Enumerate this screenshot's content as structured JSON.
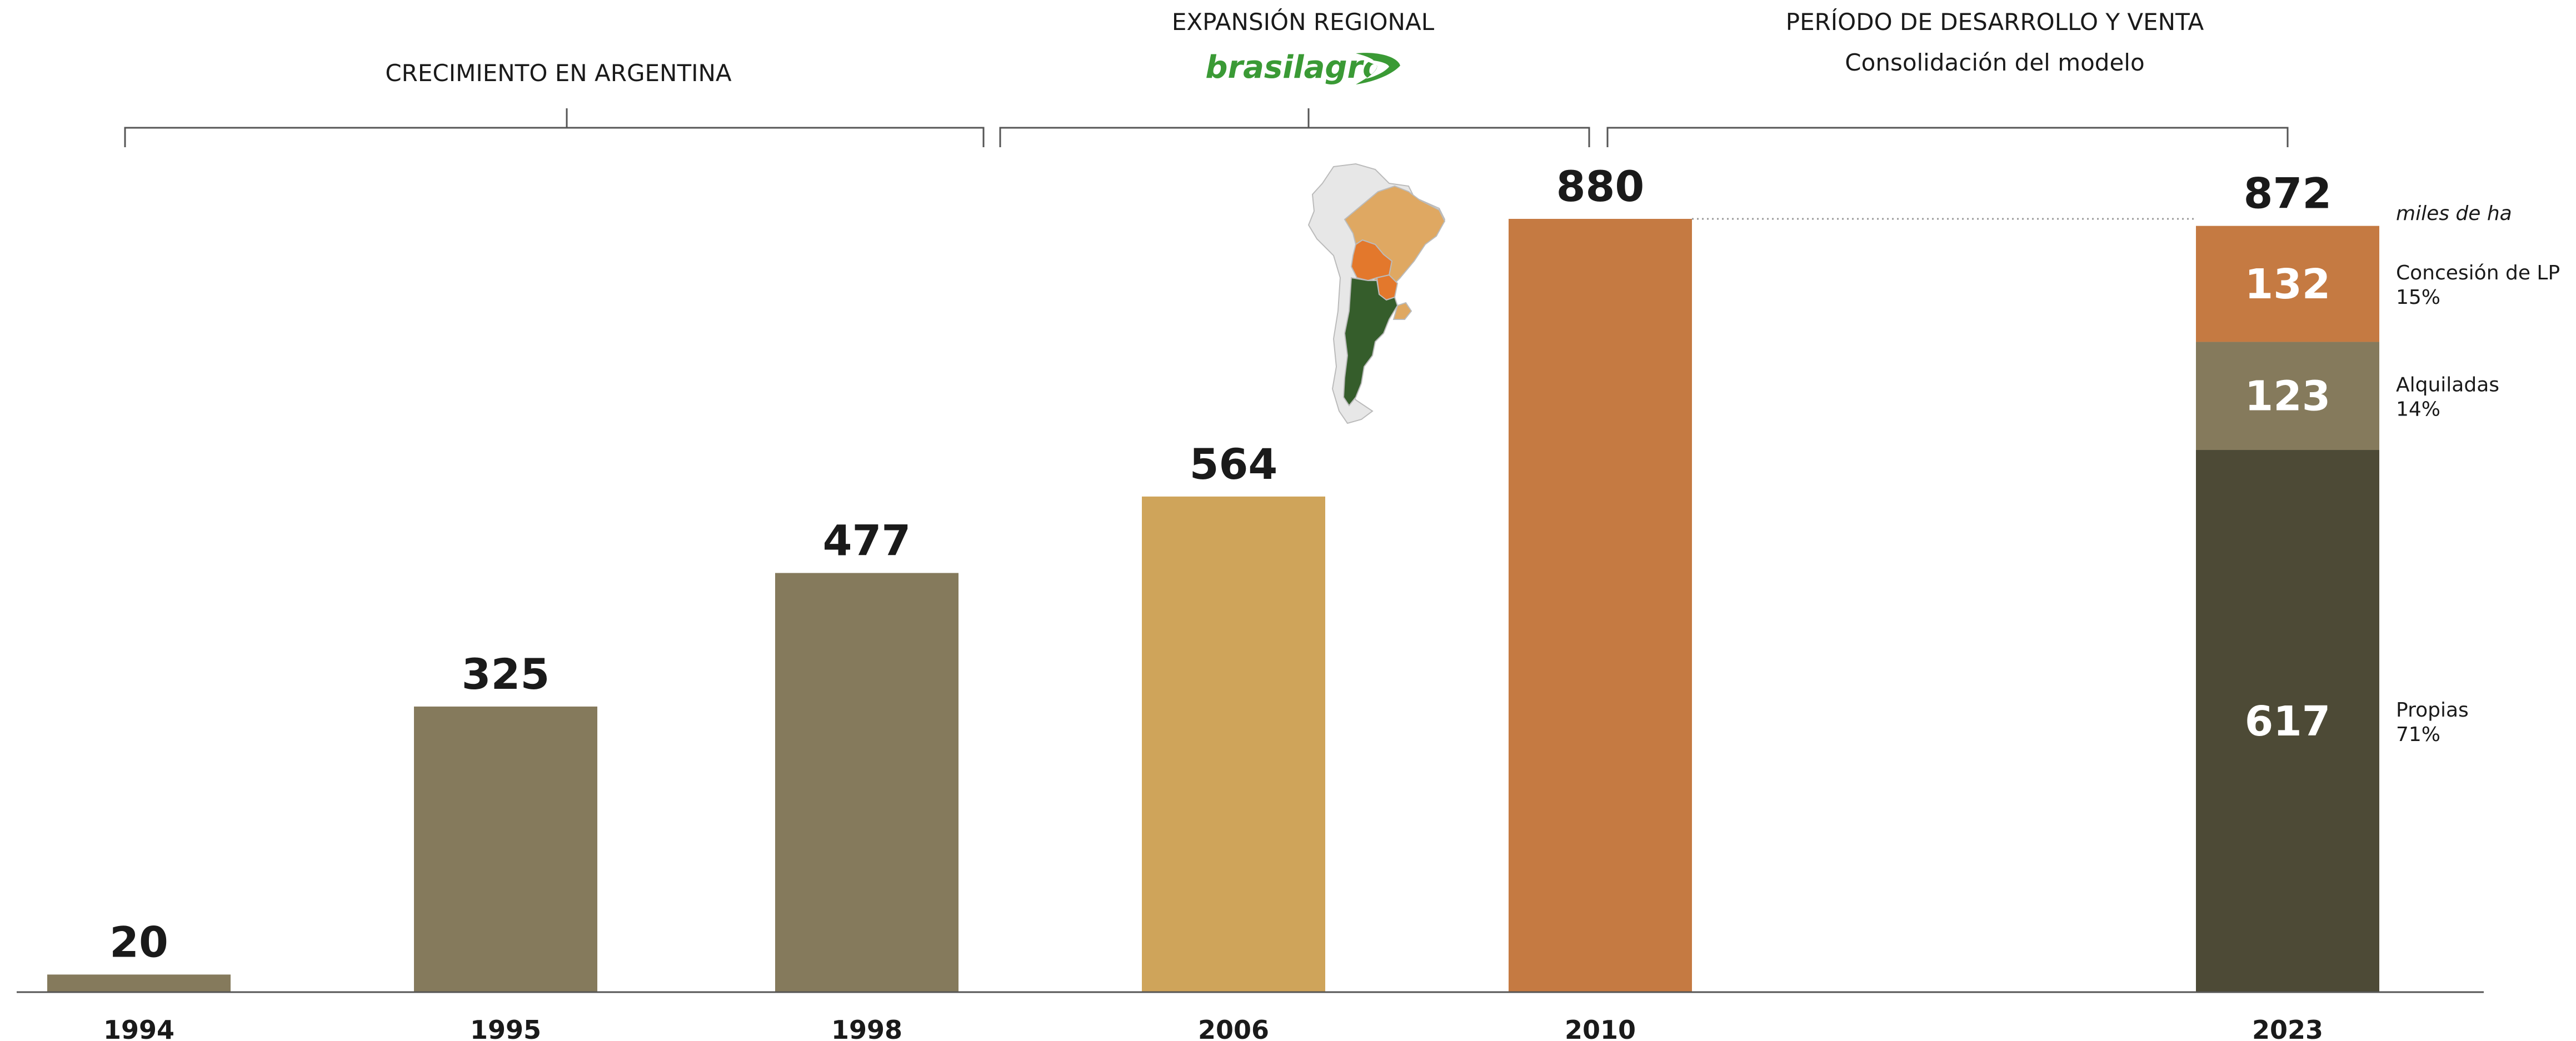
{
  "header": {
    "periods": [
      {
        "title": "CRECIMIENTO EN ARGENTINA",
        "subtitle": ""
      },
      {
        "title": "EXPANSIÓN REGIONAL",
        "subtitle": "",
        "logo": "brasilagro"
      },
      {
        "title": "PERÍODO DE DESARROLLO Y VENTA",
        "subtitle": "Consolidación del modelo"
      }
    ]
  },
  "colors": {
    "olive": "#857a5c",
    "sand": "#cfa45a",
    "terracotta": "#c57a42",
    "dark": "#4d4a36",
    "axis": "#555555",
    "logo_green": "#3a9a35",
    "map_gray": "#e7e7e7",
    "map_sand": "#dfa862",
    "map_orange": "#e3782c",
    "map_green": "#355d2b"
  },
  "chart_data": {
    "type": "bar",
    "unit_label": "miles de ha",
    "categories": [
      "1994",
      "1995",
      "1998",
      "2006",
      "2010",
      "2023"
    ],
    "values": [
      20,
      325,
      477,
      564,
      880,
      872
    ],
    "bar_colors": [
      "olive",
      "olive",
      "olive",
      "sand",
      "terracotta",
      null
    ],
    "stacked_last": {
      "category": "2023",
      "total": 872,
      "segments": [
        {
          "name": "Propias",
          "pct": "71%",
          "value": 617,
          "color": "dark"
        },
        {
          "name": "Alquiladas",
          "pct": "14%",
          "value": 123,
          "color": "olive"
        },
        {
          "name": "Concesión de LP",
          "pct": "15%",
          "value": 132,
          "color": "terracotta"
        }
      ]
    },
    "ylim": [
      0,
      880
    ]
  }
}
